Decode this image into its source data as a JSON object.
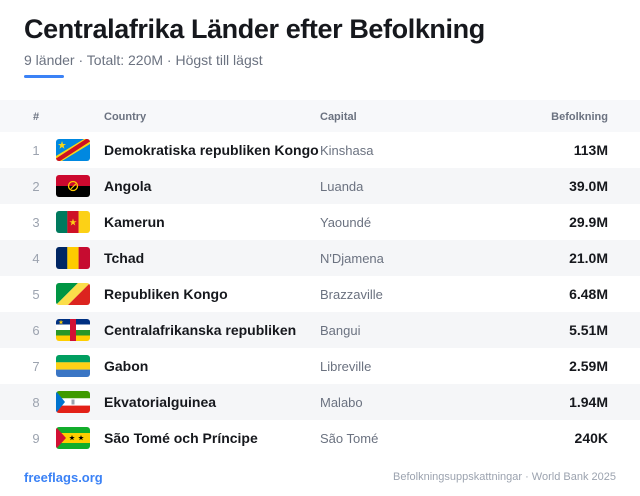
{
  "header": {
    "title": "Centralafrika Länder efter Befolkning",
    "subtitle": "9 länder · Totalt: 220M · Högst till lägst"
  },
  "table": {
    "columns": {
      "rank": "#",
      "country": "Country",
      "capital": "Capital",
      "population": "Befolkning"
    },
    "rows": [
      {
        "rank": "1",
        "country": "Demokratiska republiken Kongo",
        "capital": "Kinshasa",
        "population": "113M",
        "flag": "cd-flag"
      },
      {
        "rank": "2",
        "country": "Angola",
        "capital": "Luanda",
        "population": "39.0M",
        "flag": "ao-flag"
      },
      {
        "rank": "3",
        "country": "Kamerun",
        "capital": "Yaoundé",
        "population": "29.9M",
        "flag": "cm-flag"
      },
      {
        "rank": "4",
        "country": "Tchad",
        "capital": "N'Djamena",
        "population": "21.0M",
        "flag": "td-flag"
      },
      {
        "rank": "5",
        "country": "Republiken Kongo",
        "capital": "Brazzaville",
        "population": "6.48M",
        "flag": "cg-flag"
      },
      {
        "rank": "6",
        "country": "Centralafrikanska republiken",
        "capital": "Bangui",
        "population": "5.51M",
        "flag": "cf-flag"
      },
      {
        "rank": "7",
        "country": "Gabon",
        "capital": "Libreville",
        "population": "2.59M",
        "flag": "ga-flag"
      },
      {
        "rank": "8",
        "country": "Ekvatorialguinea",
        "capital": "Malabo",
        "population": "1.94M",
        "flag": "gq-flag"
      },
      {
        "rank": "9",
        "country": "São Tomé och Príncipe",
        "capital": "São Tomé",
        "population": "240K",
        "flag": "st-flag"
      }
    ]
  },
  "footer": {
    "site": "freeflags.org",
    "source": "Befolkningsuppskattningar · World Bank 2025"
  },
  "colors": {
    "accent": "#3b82f6",
    "row_alt": "#f5f6f8",
    "header_bg": "#f7f8fa"
  }
}
